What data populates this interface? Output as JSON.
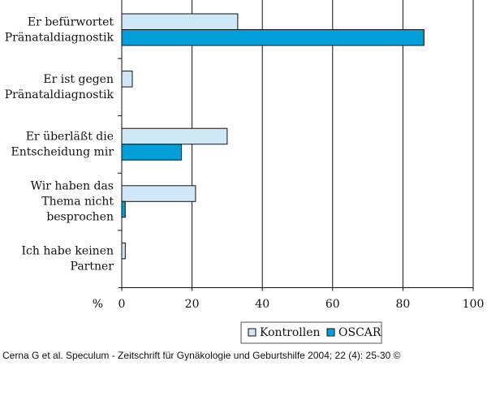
{
  "chart_data": {
    "type": "hbar",
    "categories": [
      "Er befürwortet\nPränataldiagnostik",
      "Er ist gegen\nPränataldiagnostik",
      "Er überläßt die\nEntscheidung mir",
      "Wir haben das\nThema nicht\nbesprochen",
      "Ich habe keinen\nPartner"
    ],
    "series": [
      {
        "name": "Kontrollen",
        "color": "#cfe8f7",
        "values": [
          33,
          3,
          30,
          21,
          1
        ]
      },
      {
        "name": "OSCAR",
        "color": "#009fd9",
        "values": [
          86,
          0,
          17,
          1,
          0
        ]
      }
    ],
    "xlabel": "%",
    "xlim": [
      0,
      100
    ],
    "xticks": [
      0,
      20,
      40,
      60,
      80,
      100
    ],
    "grid": true,
    "legend": "bottom",
    "caption": "Cerna G et al. Speculum - Zeitschrift für Gynäkologie und Geburtshilfe 2004; 22 (4): 25-30 ©"
  }
}
